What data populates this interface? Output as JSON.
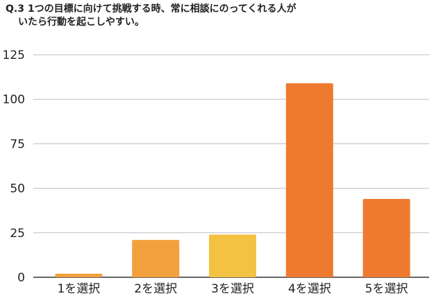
{
  "title": {
    "line1": "Q.3 1つの目標に向けて挑戦する時、常に相談にのってくれる人が",
    "line2": "いたら行動を起こしやすい。"
  },
  "colors": {
    "grid": "#bdbdbd",
    "axis": "#333333",
    "tick_text": "#222222"
  },
  "chart_data": {
    "type": "bar",
    "title": "Q.3 1つの目標に向けて挑戦する時、常に相談にのってくれる人がいたら行動を起こしやすい。",
    "xlabel": "",
    "ylabel": "",
    "categories": [
      "1を選択",
      "2を選択",
      "3を選択",
      "4を選択",
      "5を選択"
    ],
    "values": [
      2,
      21,
      24,
      109,
      44
    ],
    "bar_colors": [
      "#f2a03d",
      "#f2a03d",
      "#f3c243",
      "#ee7a30",
      "#ee7a30"
    ],
    "ylim": [
      0,
      125
    ],
    "yticks": [
      0,
      25,
      50,
      75,
      100,
      125
    ],
    "grid": true,
    "legend": "none"
  }
}
